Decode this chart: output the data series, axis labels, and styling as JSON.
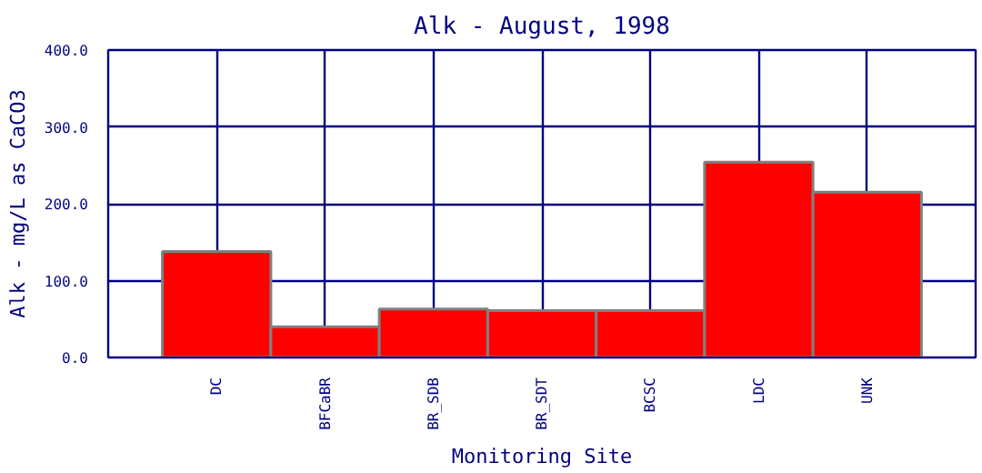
{
  "chart_data": {
    "type": "bar",
    "title": "Alk - August, 1998",
    "xlabel": "Monitoring Site",
    "ylabel": "Alk - mg/L as CaCO3",
    "categories": [
      "DC",
      "BFCaBR",
      "BR_SDB",
      "BR_SDT",
      "BCSC",
      "LDC",
      "UNK"
    ],
    "values": [
      138,
      40,
      63,
      61,
      61,
      254,
      215
    ],
    "color": "#ff0000",
    "ylim": [
      0,
      400
    ],
    "yticks": [
      {
        "value": 0,
        "label": "0.0"
      },
      {
        "value": 100,
        "label": "100.0"
      },
      {
        "value": 200,
        "label": "200.0"
      },
      {
        "value": 300,
        "label": "300.0"
      },
      {
        "value": 400,
        "label": "400.0"
      }
    ],
    "grid": true
  }
}
